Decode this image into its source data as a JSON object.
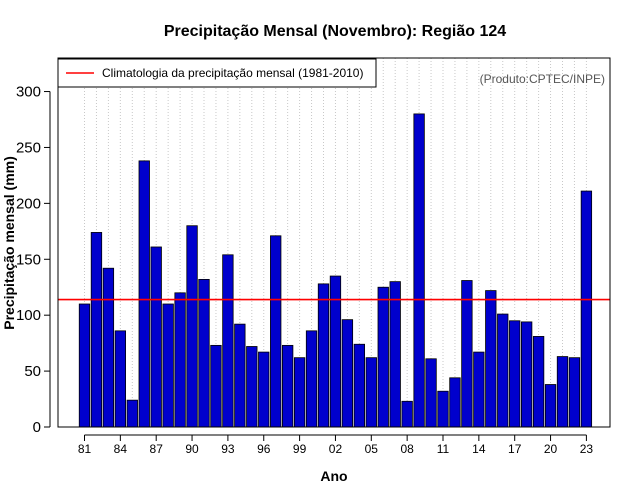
{
  "chart_data": {
    "type": "bar",
    "title": "Precipitação Mensal (Novembro): Região 124",
    "xlabel": "Ano",
    "ylabel": "Precipitação mensal (mm)",
    "credit": "(Produto:CPTEC/INPE)",
    "ylim": [
      0,
      330
    ],
    "yticks": [
      0,
      50,
      100,
      150,
      200,
      250,
      300
    ],
    "categories": [
      "1981",
      "1982",
      "1983",
      "1984",
      "1985",
      "1986",
      "1987",
      "1988",
      "1989",
      "1990",
      "1991",
      "1992",
      "1993",
      "1994",
      "1995",
      "1996",
      "1997",
      "1998",
      "1999",
      "2000",
      "2001",
      "2002",
      "2003",
      "2004",
      "2005",
      "2006",
      "2007",
      "2008",
      "2009",
      "2010",
      "2011",
      "2012",
      "2013",
      "2014",
      "2015",
      "2016",
      "2017",
      "2018",
      "2019",
      "2020",
      "2021",
      "2022",
      "2023"
    ],
    "xtick_labels": [
      {
        "index": 0,
        "label": "81"
      },
      {
        "index": 3,
        "label": "84"
      },
      {
        "index": 6,
        "label": "87"
      },
      {
        "index": 9,
        "label": "90"
      },
      {
        "index": 12,
        "label": "93"
      },
      {
        "index": 15,
        "label": "96"
      },
      {
        "index": 18,
        "label": "99"
      },
      {
        "index": 21,
        "label": "02"
      },
      {
        "index": 24,
        "label": "05"
      },
      {
        "index": 27,
        "label": "08"
      },
      {
        "index": 30,
        "label": "11"
      },
      {
        "index": 33,
        "label": "14"
      },
      {
        "index": 36,
        "label": "17"
      },
      {
        "index": 39,
        "label": "20"
      },
      {
        "index": 42,
        "label": "23"
      }
    ],
    "series": [
      {
        "name": "Precipitação mensal",
        "color": "#0000cd",
        "values": [
          110,
          174,
          142,
          86,
          24,
          238,
          161,
          110,
          120,
          180,
          132,
          73,
          154,
          92,
          72,
          67,
          171,
          73,
          62,
          86,
          128,
          135,
          96,
          74,
          62,
          125,
          130,
          23,
          280,
          61,
          32,
          44,
          131,
          67,
          122,
          101,
          95,
          94,
          81,
          38,
          63,
          62,
          211
        ]
      }
    ],
    "reference_line": {
      "value": 114,
      "color": "#ff0000",
      "label": "Climatologia da precipitação mensal (1981-2010)"
    },
    "legend_position": "top-left",
    "grid": "vertical-dotted"
  }
}
